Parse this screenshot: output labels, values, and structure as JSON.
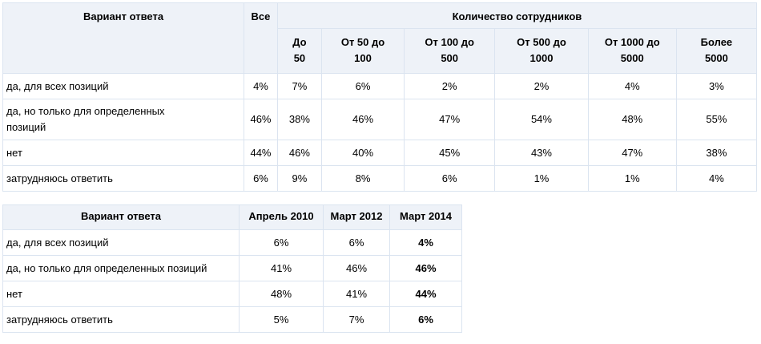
{
  "table1": {
    "header": {
      "variant": "Вариант ответа",
      "all": "Все",
      "group": "Количество сотрудников",
      "subs": [
        [
          "До",
          "50"
        ],
        [
          "От 50 до",
          "100"
        ],
        [
          "От 100 до",
          "500"
        ],
        [
          "От 500 до",
          "1000"
        ],
        [
          "От 1000 до",
          "5000"
        ],
        [
          "Более",
          "5000"
        ]
      ]
    },
    "rows": [
      {
        "label": [
          "да, для всех позиций"
        ],
        "values": [
          "4%",
          "7%",
          "6%",
          "2%",
          "2%",
          "4%",
          "3%"
        ]
      },
      {
        "label": [
          "да, но только для определенных",
          "позиций"
        ],
        "values": [
          "46%",
          "38%",
          "46%",
          "47%",
          "54%",
          "48%",
          "55%"
        ]
      },
      {
        "label": [
          "нет"
        ],
        "values": [
          "44%",
          "46%",
          "40%",
          "45%",
          "43%",
          "47%",
          "38%"
        ]
      },
      {
        "label": [
          "затрудняюсь ответить"
        ],
        "values": [
          "6%",
          "9%",
          "8%",
          "6%",
          "1%",
          "1%",
          "4%"
        ]
      }
    ]
  },
  "table2": {
    "header": [
      "Вариант ответа",
      "Апрель 2010",
      "Март 2012",
      "Март 2014"
    ],
    "rows": [
      {
        "label": "да, для всех позиций",
        "values": [
          "6%",
          "6%",
          "4%"
        ]
      },
      {
        "label": "да, но только для определенных позиций",
        "values": [
          "41%",
          "46%",
          "46%"
        ]
      },
      {
        "label": "нет",
        "values": [
          "48%",
          "41%",
          "44%"
        ]
      },
      {
        "label": "затрудняюсь ответить",
        "values": [
          "5%",
          "7%",
          "6%"
        ]
      }
    ]
  }
}
